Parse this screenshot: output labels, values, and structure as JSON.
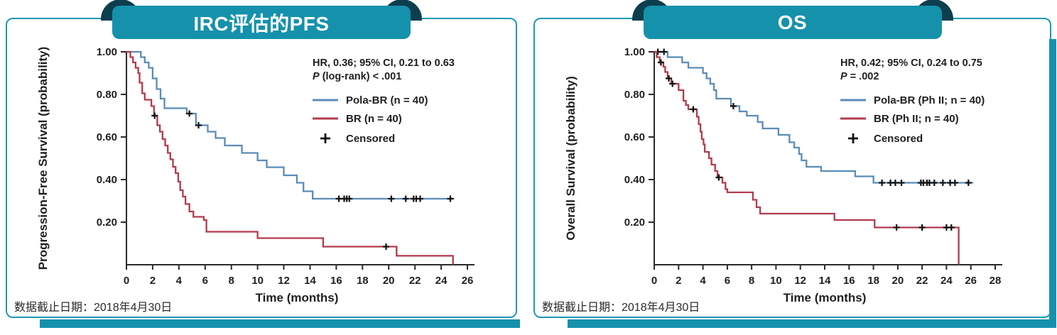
{
  "colors": {
    "header_teal": "#1591ac",
    "ribbon_dark": "#0d3e4e",
    "card_border": "#2098b3",
    "pola_br_blue": "#5b8cb8",
    "br_red": "#b23a4c",
    "censor_black": "#111111",
    "axis_black": "#2b2b2b"
  },
  "chart_data": [
    {
      "type": "line",
      "subtype": "kaplan_meier_step",
      "panel_title": "IRC评估的PFS",
      "footer": "数据截止日期：2018年4月30日",
      "stats_line1": "HR, 0.36; 95% CI, 0.21 to 0.63",
      "stats_line2": {
        "italic": "P",
        "rest": " (log-rank) < .001"
      },
      "censored_label": "Censored",
      "xlabel": "Time (months)",
      "ylabel": "Progression-Free Survival (probability)",
      "xlim": [
        0,
        26
      ],
      "xtick_step": 2,
      "ylim": [
        0,
        1.0
      ],
      "yticks": [
        0.2,
        0.4,
        0.6,
        0.8,
        1.0
      ],
      "grid": false,
      "legend_position": "upper right",
      "series": [
        {
          "name": "Pola-BR (n = 40)",
          "color": "#5b8cb8",
          "steps": [
            [
              0,
              1.0
            ],
            [
              1.1,
              0.975
            ],
            [
              1.4,
              0.95
            ],
            [
              1.7,
              0.925
            ],
            [
              2.0,
              0.875
            ],
            [
              2.3,
              0.825
            ],
            [
              2.6,
              0.78
            ],
            [
              2.9,
              0.735
            ],
            [
              4.6,
              0.71
            ],
            [
              5.3,
              0.655
            ],
            [
              6.2,
              0.625
            ],
            [
              6.8,
              0.595
            ],
            [
              7.5,
              0.56
            ],
            [
              8.8,
              0.525
            ],
            [
              10.0,
              0.49
            ],
            [
              10.7,
              0.458
            ],
            [
              12.0,
              0.42
            ],
            [
              13.0,
              0.385
            ],
            [
              13.5,
              0.345
            ],
            [
              14.2,
              0.31
            ],
            [
              25.0,
              0.31
            ]
          ],
          "censored": [
            [
              4.8,
              0.71
            ],
            [
              5.5,
              0.655
            ],
            [
              16.2,
              0.31
            ],
            [
              16.6,
              0.31
            ],
            [
              16.8,
              0.31
            ],
            [
              17.0,
              0.31
            ],
            [
              20.2,
              0.31
            ],
            [
              21.3,
              0.31
            ],
            [
              21.9,
              0.31
            ],
            [
              22.1,
              0.31
            ],
            [
              22.4,
              0.31
            ],
            [
              24.7,
              0.31
            ]
          ]
        },
        {
          "name": "BR (n = 40)",
          "color": "#b23a4c",
          "steps": [
            [
              0,
              1.0
            ],
            [
              0.3,
              0.975
            ],
            [
              0.5,
              0.95
            ],
            [
              0.7,
              0.925
            ],
            [
              0.9,
              0.9
            ],
            [
              1.0,
              0.855
            ],
            [
              1.2,
              0.805
            ],
            [
              1.4,
              0.775
            ],
            [
              1.9,
              0.745
            ],
            [
              2.1,
              0.7
            ],
            [
              2.35,
              0.655
            ],
            [
              2.55,
              0.625
            ],
            [
              2.75,
              0.59
            ],
            [
              2.95,
              0.56
            ],
            [
              3.15,
              0.525
            ],
            [
              3.35,
              0.495
            ],
            [
              3.55,
              0.46
            ],
            [
              3.75,
              0.43
            ],
            [
              3.95,
              0.39
            ],
            [
              4.1,
              0.35
            ],
            [
              4.3,
              0.32
            ],
            [
              4.5,
              0.285
            ],
            [
              4.8,
              0.25
            ],
            [
              5.1,
              0.225
            ],
            [
              5.9,
              0.21
            ],
            [
              6.1,
              0.155
            ],
            [
              10.0,
              0.125
            ],
            [
              15.0,
              0.085
            ],
            [
              20.6,
              0.042
            ],
            [
              24.9,
              0.042
            ],
            [
              24.9,
              0
            ]
          ],
          "censored": [
            [
              2.15,
              0.7
            ],
            [
              19.8,
              0.085
            ]
          ]
        }
      ]
    },
    {
      "type": "line",
      "subtype": "kaplan_meier_step",
      "panel_title": "OS",
      "footer": "数据截止日期：2018年4月30日",
      "stats_line1": "HR, 0.42; 95% CI, 0.24 to 0.75",
      "stats_line2": {
        "italic": "P",
        "rest": " = .002"
      },
      "censored_label": "Censored",
      "xlabel": "Time (months)",
      "ylabel": "Overall Survival (probability)",
      "xlim": [
        0,
        28
      ],
      "xtick_step": 2,
      "ylim": [
        0,
        1.0
      ],
      "yticks": [
        0.2,
        0.4,
        0.6,
        0.8,
        1.0
      ],
      "grid": false,
      "legend_position": "upper right",
      "series": [
        {
          "name": "Pola-BR (Ph II; n = 40)",
          "color": "#5b8cb8",
          "steps": [
            [
              0,
              1.0
            ],
            [
              1.1,
              0.975
            ],
            [
              2.3,
              0.95
            ],
            [
              2.8,
              0.925
            ],
            [
              4.0,
              0.9
            ],
            [
              4.3,
              0.875
            ],
            [
              4.6,
              0.85
            ],
            [
              4.9,
              0.82
            ],
            [
              5.1,
              0.78
            ],
            [
              6.3,
              0.745
            ],
            [
              7.0,
              0.72
            ],
            [
              7.6,
              0.7
            ],
            [
              8.5,
              0.67
            ],
            [
              8.9,
              0.64
            ],
            [
              10.2,
              0.61
            ],
            [
              11.1,
              0.575
            ],
            [
              11.5,
              0.55
            ],
            [
              11.9,
              0.52
            ],
            [
              12.1,
              0.49
            ],
            [
              12.5,
              0.46
            ],
            [
              13.7,
              0.44
            ],
            [
              16.5,
              0.415
            ],
            [
              18.0,
              0.385
            ],
            [
              26.2,
              0.385
            ]
          ],
          "censored": [
            [
              0.3,
              1.0
            ],
            [
              0.8,
              1.0
            ],
            [
              6.5,
              0.745
            ],
            [
              18.7,
              0.385
            ],
            [
              19.4,
              0.385
            ],
            [
              19.8,
              0.385
            ],
            [
              20.3,
              0.385
            ],
            [
              21.9,
              0.385
            ],
            [
              22.1,
              0.385
            ],
            [
              22.4,
              0.385
            ],
            [
              22.6,
              0.385
            ],
            [
              23.0,
              0.385
            ],
            [
              23.7,
              0.385
            ],
            [
              24.3,
              0.385
            ],
            [
              24.7,
              0.385
            ],
            [
              25.8,
              0.385
            ]
          ]
        },
        {
          "name": "BR (Ph II; n = 40)",
          "color": "#b23a4c",
          "steps": [
            [
              0,
              1.0
            ],
            [
              0.2,
              0.975
            ],
            [
              0.45,
              0.95
            ],
            [
              0.75,
              0.93
            ],
            [
              0.9,
              0.905
            ],
            [
              1.1,
              0.875
            ],
            [
              1.4,
              0.85
            ],
            [
              2.0,
              0.82
            ],
            [
              2.4,
              0.77
            ],
            [
              2.6,
              0.75
            ],
            [
              2.8,
              0.73
            ],
            [
              3.5,
              0.695
            ],
            [
              3.65,
              0.66
            ],
            [
              3.8,
              0.625
            ],
            [
              3.9,
              0.59
            ],
            [
              4.05,
              0.565
            ],
            [
              4.15,
              0.53
            ],
            [
              4.5,
              0.5
            ],
            [
              4.7,
              0.47
            ],
            [
              5.0,
              0.44
            ],
            [
              5.2,
              0.41
            ],
            [
              5.6,
              0.385
            ],
            [
              5.85,
              0.355
            ],
            [
              6.0,
              0.34
            ],
            [
              8.1,
              0.305
            ],
            [
              8.4,
              0.27
            ],
            [
              8.7,
              0.24
            ],
            [
              14.8,
              0.21
            ],
            [
              18.1,
              0.175
            ],
            [
              25.0,
              0.175
            ],
            [
              25.0,
              0
            ]
          ],
          "censored": [
            [
              0.55,
              0.95
            ],
            [
              1.2,
              0.875
            ],
            [
              1.5,
              0.85
            ],
            [
              3.2,
              0.73
            ],
            [
              5.3,
              0.41
            ],
            [
              19.9,
              0.175
            ],
            [
              22.0,
              0.175
            ],
            [
              24.0,
              0.175
            ],
            [
              24.4,
              0.175
            ]
          ]
        }
      ]
    }
  ]
}
